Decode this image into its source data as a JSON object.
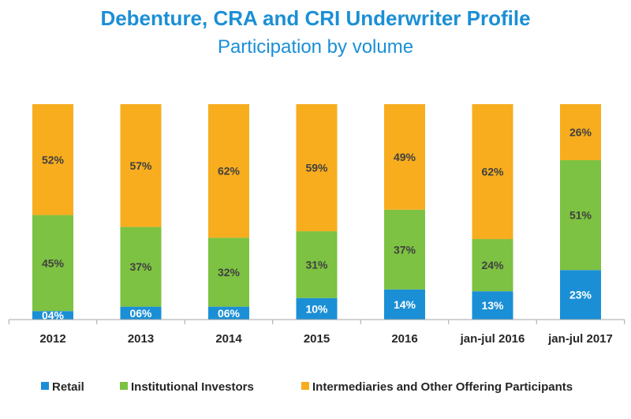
{
  "header": {
    "title": "Debenture, CRA and CRI Underwriter Profile",
    "subtitle": "Participation by volume"
  },
  "chart_data": {
    "type": "bar",
    "stacked": true,
    "percent": true,
    "title": "Debenture, CRA and CRI Underwriter Profile",
    "subtitle": "Participation by volume",
    "categories": [
      "2012",
      "2013",
      "2014",
      "2015",
      "2016",
      "jan-jul 2016",
      "jan-jul 2017"
    ],
    "series": [
      {
        "name": "Retail",
        "color": "#1b8fd6",
        "values": [
          4,
          6,
          6,
          10,
          14,
          13,
          23
        ],
        "labels": [
          "04%",
          "06%",
          "06%",
          "10%",
          "14%",
          "13%",
          "23%"
        ],
        "label_color": "#ffffff"
      },
      {
        "name": "Institutional Investors",
        "color": "#7dc242",
        "values": [
          45,
          37,
          32,
          31,
          37,
          24,
          51
        ],
        "labels": [
          "45%",
          "37%",
          "32%",
          "31%",
          "37%",
          "24%",
          "51%"
        ],
        "label_color": "#404040"
      },
      {
        "name": "Intermediaries and Other Offering Participants",
        "color": "#f7ad1e",
        "values": [
          52,
          57,
          62,
          59,
          49,
          62,
          26
        ],
        "labels": [
          "52%",
          "57%",
          "62%",
          "59%",
          "49%",
          "62%",
          "26%"
        ],
        "label_color": "#404040"
      }
    ],
    "ylim": [
      0,
      100
    ],
    "grid": false,
    "legend": "bottom"
  }
}
